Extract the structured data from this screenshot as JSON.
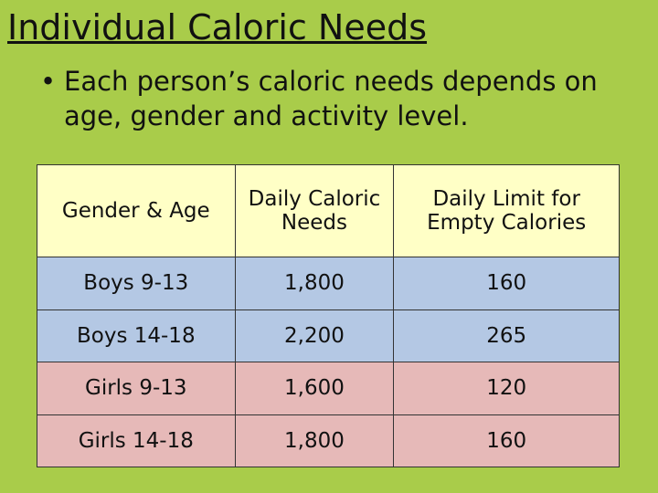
{
  "header": {
    "title": "Individual Caloric Needs"
  },
  "bullets": [
    "Each person’s caloric needs depends on age, gender and activity level."
  ],
  "table": {
    "columns": [
      "Gender  & Age",
      "Daily Caloric Needs",
      "Daily Limit for Empty Calories"
    ],
    "rows": [
      [
        "Boys 9-13",
        "1,800",
        "160"
      ],
      [
        "Boys 14-18",
        "2,200",
        "265"
      ],
      [
        "Girls 9-13",
        "1,600",
        "120"
      ],
      [
        "Girls 14-18",
        "1,800",
        "160"
      ]
    ]
  }
}
